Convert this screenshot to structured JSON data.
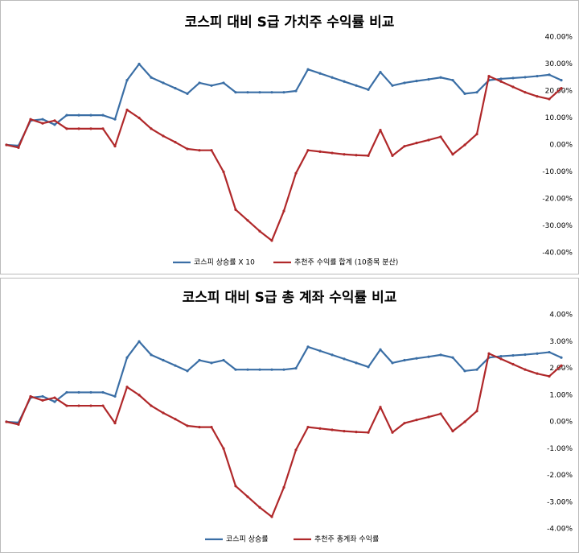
{
  "chart_data": [
    {
      "type": "line",
      "title": "코스피 대비 S급 가치주 수익률 비교",
      "categories": [
        null,
        null,
        null,
        null,
        null,
        null,
        null,
        null,
        null,
        null,
        null,
        null,
        null,
        null,
        null,
        null,
        null,
        null,
        null,
        null,
        null,
        null,
        null,
        null,
        null,
        null,
        null,
        null,
        null,
        null,
        null,
        null,
        null,
        null,
        null,
        null,
        null,
        null,
        null,
        null,
        null,
        null,
        null,
        null,
        null,
        null,
        null
      ],
      "series": [
        {
          "name": "코스피 상승률 X 10",
          "color": "#3a6ea5",
          "values": [
            0,
            -0.3,
            9,
            9.5,
            7.5,
            11,
            11,
            11,
            11,
            9.5,
            24,
            30,
            25,
            23,
            21,
            19,
            23,
            22,
            23,
            19.5,
            19.5,
            19.5,
            19.5,
            19.5,
            20,
            28,
            26.5,
            25,
            23.5,
            22,
            20.5,
            27,
            22,
            23,
            23.7,
            24.3,
            25,
            24,
            19,
            19.5,
            24,
            24.5,
            24.8,
            25.1,
            25.5,
            26,
            24
          ]
        },
        {
          "name": "추천주 수익률 합계 (10종목 분산)",
          "color": "#b0282a",
          "values": [
            0,
            -1,
            9.5,
            8,
            9,
            6,
            6,
            6,
            6,
            -0.5,
            13,
            10,
            6,
            3.3,
            1,
            -1.5,
            -2,
            -2,
            -10,
            -24,
            -28,
            -32,
            -35.5,
            -24.5,
            -10.5,
            -2,
            -2.5,
            -3,
            -3.5,
            -3.8,
            -4,
            5.5,
            -4,
            -0.5,
            0.7,
            1.8,
            3,
            -3.5,
            0,
            4,
            25.5,
            23.5,
            21.5,
            19.5,
            18,
            17,
            21
          ]
        }
      ],
      "ylim": [
        -40,
        40
      ],
      "yticks": [
        {
          "value": 40,
          "label": "40.00%"
        },
        {
          "value": 30,
          "label": "30.00%"
        },
        {
          "value": 20,
          "label": "20.00%"
        },
        {
          "value": 10,
          "label": "10.00%"
        },
        {
          "value": 0,
          "label": "0.00%"
        },
        {
          "value": -10,
          "label": "-10.00%"
        },
        {
          "value": -20,
          "label": "-20.00%"
        },
        {
          "value": -30,
          "label": "-30.00%"
        },
        {
          "value": -40,
          "label": "-40.00%"
        }
      ],
      "legend": "bottom"
    },
    {
      "type": "line",
      "title": "코스피 대비 S급 총 계좌 수익률 비교",
      "categories": [
        null,
        null,
        null,
        null,
        null,
        null,
        null,
        null,
        null,
        null,
        null,
        null,
        null,
        null,
        null,
        null,
        null,
        null,
        null,
        null,
        null,
        null,
        null,
        null,
        null,
        null,
        null,
        null,
        null,
        null,
        null,
        null,
        null,
        null,
        null,
        null,
        null,
        null,
        null,
        null,
        null,
        null,
        null,
        null,
        null,
        null,
        null
      ],
      "series": [
        {
          "name": "코스피 상승률",
          "color": "#3a6ea5",
          "values": [
            0,
            -0.03,
            0.9,
            0.95,
            0.75,
            1.1,
            1.1,
            1.1,
            1.1,
            0.95,
            2.4,
            3.0,
            2.5,
            2.3,
            2.1,
            1.9,
            2.3,
            2.2,
            2.3,
            1.95,
            1.95,
            1.95,
            1.95,
            1.95,
            2.0,
            2.8,
            2.65,
            2.5,
            2.35,
            2.2,
            2.05,
            2.7,
            2.2,
            2.3,
            2.37,
            2.43,
            2.5,
            2.4,
            1.9,
            1.95,
            2.4,
            2.45,
            2.48,
            2.51,
            2.55,
            2.6,
            2.4
          ]
        },
        {
          "name": "추천주 총계좌 수익률",
          "color": "#b0282a",
          "values": [
            0,
            -0.1,
            0.95,
            0.8,
            0.9,
            0.6,
            0.6,
            0.6,
            0.6,
            -0.05,
            1.3,
            1.0,
            0.6,
            0.33,
            0.1,
            -0.15,
            -0.2,
            -0.2,
            -1.0,
            -2.4,
            -2.8,
            -3.2,
            -3.55,
            -2.45,
            -1.05,
            -0.2,
            -0.25,
            -0.3,
            -0.35,
            -0.38,
            -0.4,
            0.55,
            -0.4,
            -0.05,
            0.07,
            0.18,
            0.3,
            -0.35,
            0,
            0.4,
            2.55,
            2.35,
            2.15,
            1.95,
            1.8,
            1.7,
            2.1
          ]
        }
      ],
      "ylim": [
        -4,
        4
      ],
      "yticks": [
        {
          "value": 4,
          "label": "4.00%"
        },
        {
          "value": 3,
          "label": "3.00%"
        },
        {
          "value": 2,
          "label": "2.00%"
        },
        {
          "value": 1,
          "label": "1.00%"
        },
        {
          "value": 0,
          "label": "0.00%"
        },
        {
          "value": -1,
          "label": "-1.00%"
        },
        {
          "value": -2,
          "label": "-2.00%"
        },
        {
          "value": -3,
          "label": "-3.00%"
        },
        {
          "value": -4,
          "label": "-4.00%"
        }
      ],
      "legend": "bottom"
    }
  ]
}
